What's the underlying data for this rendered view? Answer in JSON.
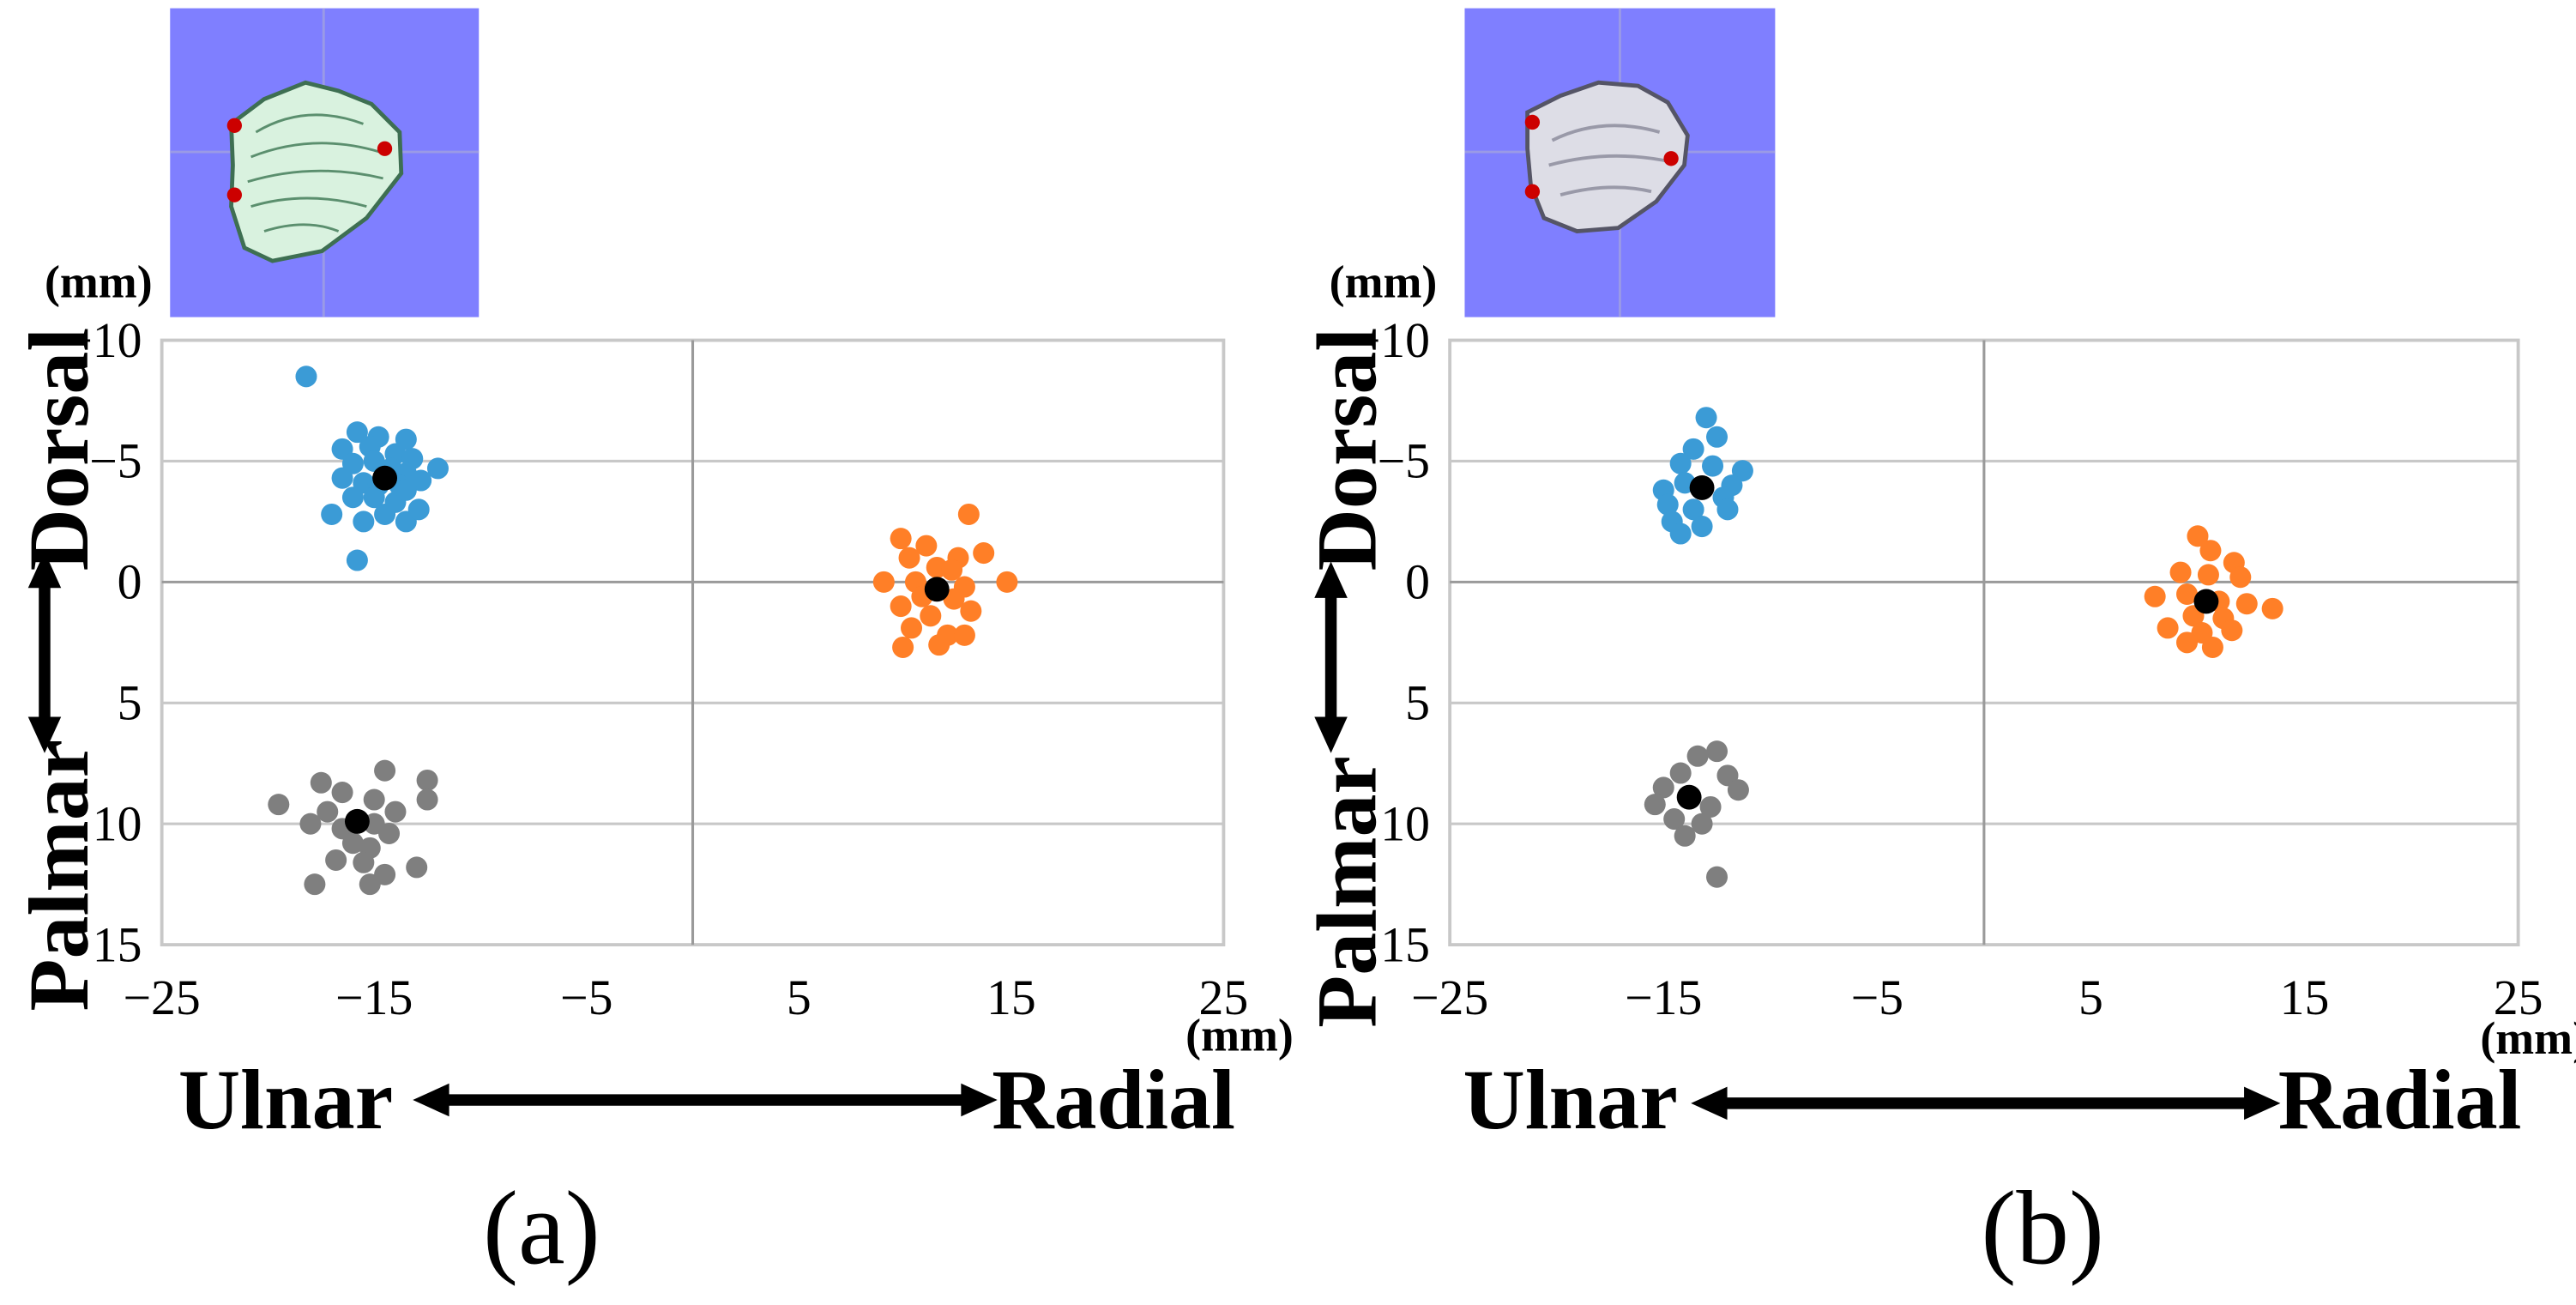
{
  "panels": [
    {
      "panel_label": "(a)",
      "ylabel_top": "Dorsal",
      "ylabel_bottom": "Palmar",
      "xlabel_left": "Ulnar",
      "xlabel_right": "Radial",
      "y_unit": "(mm)",
      "x_unit": "(mm)",
      "x_ticks": [
        "−25",
        "−15",
        "−5",
        "5",
        "15",
        "25"
      ],
      "y_ticks": [
        "−10",
        "−5",
        "0",
        "5",
        "10",
        "15"
      ],
      "inset": {
        "background": "#7f7fff",
        "bone_color": "#d9f2df",
        "marker_color": "#cc0000"
      }
    },
    {
      "panel_label": "(b)",
      "ylabel_top": "Dorsal",
      "ylabel_bottom": "Palmar",
      "xlabel_left": "Ulnar",
      "xlabel_right": "Radial",
      "y_unit": "(mm)",
      "x_unit": "(mm)",
      "x_ticks": [
        "−25",
        "−15",
        "−5",
        "5",
        "15",
        "25"
      ],
      "y_ticks": [
        "−10",
        "−5",
        "0",
        "5",
        "10",
        "15"
      ],
      "inset": {
        "background": "#7f7fff",
        "bone_color": "#dddde6",
        "marker_color": "#cc0000"
      }
    }
  ],
  "colors": {
    "blue": "#3b9bd6",
    "orange": "#ff7f27",
    "gray": "#7f7f7f",
    "mean": "#000000",
    "grid": "#c8c8c8"
  },
  "chart_data": [
    {
      "type": "scatter",
      "xlim": [
        -25,
        25
      ],
      "ylim": [
        -10,
        15
      ],
      "y_inverted": true,
      "grid": true,
      "series": [
        {
          "color": "blue",
          "mean": [
            -14.5,
            -4.3
          ],
          "points": [
            [
              -18.2,
              -8.5
            ],
            [
              -15.8,
              -6.2
            ],
            [
              -14.8,
              -6.0
            ],
            [
              -13.5,
              -5.9
            ],
            [
              -16.5,
              -5.5
            ],
            [
              -15.2,
              -5.6
            ],
            [
              -14.0,
              -5.3
            ],
            [
              -13.2,
              -5.1
            ],
            [
              -16.0,
              -4.9
            ],
            [
              -15.0,
              -5.0
            ],
            [
              -14.2,
              -4.7
            ],
            [
              -13.5,
              -4.5
            ],
            [
              -12.0,
              -4.7
            ],
            [
              -16.5,
              -4.3
            ],
            [
              -15.5,
              -4.1
            ],
            [
              -14.8,
              -4.0
            ],
            [
              -13.8,
              -4.0
            ],
            [
              -12.8,
              -4.2
            ],
            [
              -16.0,
              -3.5
            ],
            [
              -15.0,
              -3.5
            ],
            [
              -14.0,
              -3.3
            ],
            [
              -13.5,
              -3.8
            ],
            [
              -17.0,
              -2.8
            ],
            [
              -15.5,
              -2.5
            ],
            [
              -14.5,
              -2.8
            ],
            [
              -13.5,
              -2.5
            ],
            [
              -12.9,
              -3.0
            ],
            [
              -15.8,
              -0.9
            ]
          ]
        },
        {
          "color": "orange",
          "mean": [
            11.5,
            0.3
          ],
          "points": [
            [
              13.0,
              -2.8
            ],
            [
              9.8,
              -1.8
            ],
            [
              11.0,
              -1.5
            ],
            [
              12.5,
              -1.0
            ],
            [
              10.2,
              -1.0
            ],
            [
              13.7,
              -1.2
            ],
            [
              11.5,
              -0.6
            ],
            [
              12.2,
              -0.5
            ],
            [
              9.0,
              0.0
            ],
            [
              10.5,
              0.0
            ],
            [
              14.8,
              0.0
            ],
            [
              12.8,
              0.2
            ],
            [
              10.8,
              0.6
            ],
            [
              12.3,
              0.7
            ],
            [
              9.8,
              1.0
            ],
            [
              13.1,
              1.2
            ],
            [
              11.2,
              1.4
            ],
            [
              10.3,
              1.9
            ],
            [
              12.0,
              2.2
            ],
            [
              9.9,
              2.7
            ],
            [
              11.6,
              2.6
            ],
            [
              12.8,
              2.2
            ]
          ]
        },
        {
          "color": "gray",
          "mean": [
            -15.8,
            9.9
          ],
          "points": [
            [
              -14.5,
              7.8
            ],
            [
              -12.5,
              8.2
            ],
            [
              -17.5,
              8.3
            ],
            [
              -16.5,
              8.7
            ],
            [
              -15.0,
              9.0
            ],
            [
              -12.5,
              9.0
            ],
            [
              -19.5,
              9.2
            ],
            [
              -17.2,
              9.5
            ],
            [
              -14.0,
              9.5
            ],
            [
              -18.0,
              10.0
            ],
            [
              -16.5,
              10.2
            ],
            [
              -15.0,
              10.0
            ],
            [
              -14.3,
              10.4
            ],
            [
              -16.0,
              10.8
            ],
            [
              -15.2,
              11.0
            ],
            [
              -16.8,
              11.5
            ],
            [
              -13.0,
              11.8
            ],
            [
              -15.5,
              11.6
            ],
            [
              -17.8,
              12.5
            ],
            [
              -15.2,
              12.5
            ],
            [
              -14.5,
              12.1
            ]
          ]
        }
      ]
    },
    {
      "type": "scatter",
      "xlim": [
        -25,
        25
      ],
      "ylim": [
        -10,
        15
      ],
      "y_inverted": true,
      "grid": true,
      "series": [
        {
          "color": "blue",
          "mean": [
            -13.2,
            -3.9
          ],
          "points": [
            [
              -13.0,
              -6.8
            ],
            [
              -12.5,
              -6.0
            ],
            [
              -13.6,
              -5.5
            ],
            [
              -14.2,
              -4.9
            ],
            [
              -12.7,
              -4.8
            ],
            [
              -11.3,
              -4.6
            ],
            [
              -15.0,
              -3.8
            ],
            [
              -14.0,
              -4.1
            ],
            [
              -11.8,
              -4.0
            ],
            [
              -12.2,
              -3.5
            ],
            [
              -14.8,
              -3.2
            ],
            [
              -13.6,
              -3.0
            ],
            [
              -12.0,
              -3.0
            ],
            [
              -14.6,
              -2.5
            ],
            [
              -13.2,
              -2.3
            ],
            [
              -14.2,
              -2.0
            ]
          ]
        },
        {
          "color": "orange",
          "mean": [
            10.4,
            0.8
          ],
          "points": [
            [
              10.0,
              -1.9
            ],
            [
              10.6,
              -1.3
            ],
            [
              11.7,
              -0.8
            ],
            [
              9.2,
              -0.4
            ],
            [
              10.5,
              -0.3
            ],
            [
              12.0,
              -0.2
            ],
            [
              8.0,
              0.6
            ],
            [
              9.5,
              0.5
            ],
            [
              11.0,
              0.8
            ],
            [
              12.3,
              0.9
            ],
            [
              13.5,
              1.1
            ],
            [
              9.8,
              1.4
            ],
            [
              11.2,
              1.5
            ],
            [
              8.6,
              1.9
            ],
            [
              10.2,
              2.1
            ],
            [
              11.6,
              2.0
            ],
            [
              9.5,
              2.5
            ],
            [
              10.7,
              2.7
            ]
          ]
        },
        {
          "color": "gray",
          "mean": [
            -13.8,
            8.9
          ],
          "points": [
            [
              -12.5,
              7.0
            ],
            [
              -13.4,
              7.2
            ],
            [
              -14.2,
              7.9
            ],
            [
              -12.0,
              8.0
            ],
            [
              -15.0,
              8.5
            ],
            [
              -11.5,
              8.6
            ],
            [
              -15.4,
              9.2
            ],
            [
              -12.8,
              9.3
            ],
            [
              -14.5,
              9.8
            ],
            [
              -13.2,
              10.0
            ],
            [
              -14.0,
              10.5
            ],
            [
              -12.5,
              12.2
            ]
          ]
        }
      ]
    }
  ]
}
